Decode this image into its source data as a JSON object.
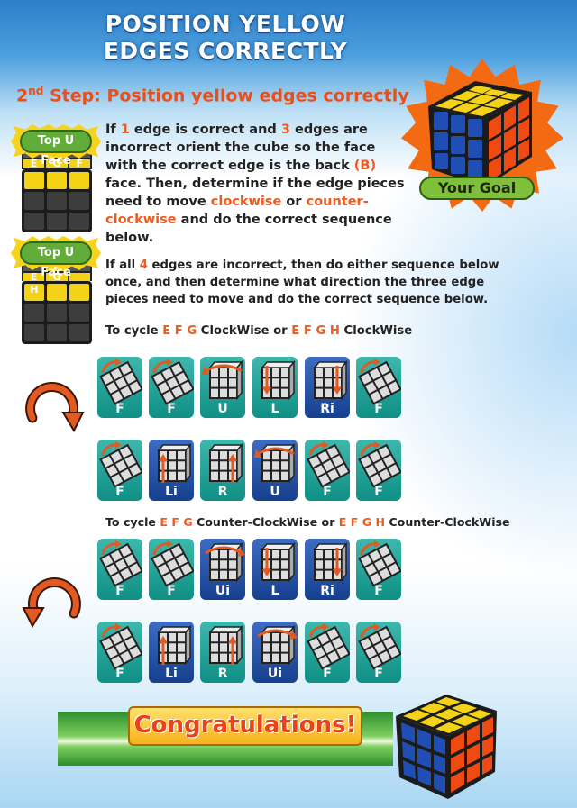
{
  "header": {
    "title_line1": "POSITION YELLOW",
    "title_line2": "EDGES CORRECTLY"
  },
  "step": {
    "prefix": "2",
    "sup": "nd",
    "text": " Step: Position yellow edges correctly"
  },
  "badges": {
    "face1": "Top U Face",
    "face2": "Top U Face",
    "goal": "Your Goal"
  },
  "face_letters": {
    "a": "E",
    "b": "G",
    "c": "F",
    "d": "F",
    "e": "E",
    "f": "G",
    "g": "H"
  },
  "para1": {
    "t1": "If ",
    "n1": "1",
    "t2": " edge is correct and ",
    "n2": "3",
    "t3": " edges are incorrect orient the cube so the face with the correct edge is the back ",
    "b": "(B)",
    "t4": " face. Then, determine if the edge pieces need to move ",
    "cw": "clockwise",
    "t5": " or ",
    "ccw": "counter-clockwise",
    "t6": " and do the correct sequence below."
  },
  "para2": {
    "t1": "If all ",
    "n": "4",
    "t2": " edges are incorrect, then do either sequence below once, and then determine what direction the three edge pieces need to move and do the correct sequence below."
  },
  "cycle_cw": {
    "t1": "To cycle ",
    "s1": "E F G",
    "t2": " ClockWise or ",
    "s2": "E F G H",
    "t3": " ClockWise"
  },
  "cycle_ccw": {
    "t1": "To cycle ",
    "s1": "E F G",
    "t2": "  Counter-ClockWise or ",
    "s2": "E F G H",
    "t3": " Counter-ClockWise"
  },
  "moves_cw_row1": [
    "F",
    "F",
    "U",
    "L",
    "Ri",
    "F"
  ],
  "moves_cw_row2": [
    "F",
    "Li",
    "R",
    "U",
    "F",
    "F"
  ],
  "moves_ccw_row1": [
    "F",
    "F",
    "Ui",
    "L",
    "Ri",
    "F"
  ],
  "moves_ccw_row2": [
    "F",
    "Li",
    "R",
    "Ui",
    "F",
    "F"
  ],
  "footer": {
    "congrats": "Congratulations!"
  },
  "colors": {
    "accent": "#f05a1e",
    "teal_tile": "#1a9a90",
    "blue_tile": "#1f4f9e",
    "yellow": "#f4d317",
    "badge_green": "#62ad3a"
  }
}
